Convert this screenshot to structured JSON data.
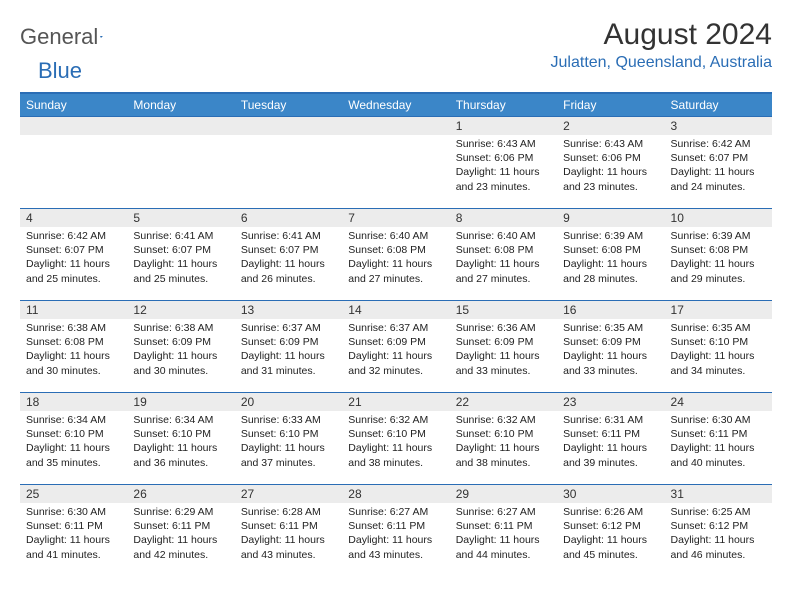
{
  "logo": {
    "text1": "General",
    "text2": "Blue"
  },
  "title": "August 2024",
  "subtitle": "Julatten, Queensland, Australia",
  "colors": {
    "header_bg": "#3b86c8",
    "header_text": "#ffffff",
    "border": "#2a6db5",
    "daynum_bg": "#ececec",
    "subtitle": "#2a6db5"
  },
  "day_headers": [
    "Sunday",
    "Monday",
    "Tuesday",
    "Wednesday",
    "Thursday",
    "Friday",
    "Saturday"
  ],
  "weeks": [
    [
      {
        "n": "",
        "sr": "",
        "ss": "",
        "dl": ""
      },
      {
        "n": "",
        "sr": "",
        "ss": "",
        "dl": ""
      },
      {
        "n": "",
        "sr": "",
        "ss": "",
        "dl": ""
      },
      {
        "n": "",
        "sr": "",
        "ss": "",
        "dl": ""
      },
      {
        "n": "1",
        "sr": "Sunrise: 6:43 AM",
        "ss": "Sunset: 6:06 PM",
        "dl": "Daylight: 11 hours and 23 minutes."
      },
      {
        "n": "2",
        "sr": "Sunrise: 6:43 AM",
        "ss": "Sunset: 6:06 PM",
        "dl": "Daylight: 11 hours and 23 minutes."
      },
      {
        "n": "3",
        "sr": "Sunrise: 6:42 AM",
        "ss": "Sunset: 6:07 PM",
        "dl": "Daylight: 11 hours and 24 minutes."
      }
    ],
    [
      {
        "n": "4",
        "sr": "Sunrise: 6:42 AM",
        "ss": "Sunset: 6:07 PM",
        "dl": "Daylight: 11 hours and 25 minutes."
      },
      {
        "n": "5",
        "sr": "Sunrise: 6:41 AM",
        "ss": "Sunset: 6:07 PM",
        "dl": "Daylight: 11 hours and 25 minutes."
      },
      {
        "n": "6",
        "sr": "Sunrise: 6:41 AM",
        "ss": "Sunset: 6:07 PM",
        "dl": "Daylight: 11 hours and 26 minutes."
      },
      {
        "n": "7",
        "sr": "Sunrise: 6:40 AM",
        "ss": "Sunset: 6:08 PM",
        "dl": "Daylight: 11 hours and 27 minutes."
      },
      {
        "n": "8",
        "sr": "Sunrise: 6:40 AM",
        "ss": "Sunset: 6:08 PM",
        "dl": "Daylight: 11 hours and 27 minutes."
      },
      {
        "n": "9",
        "sr": "Sunrise: 6:39 AM",
        "ss": "Sunset: 6:08 PM",
        "dl": "Daylight: 11 hours and 28 minutes."
      },
      {
        "n": "10",
        "sr": "Sunrise: 6:39 AM",
        "ss": "Sunset: 6:08 PM",
        "dl": "Daylight: 11 hours and 29 minutes."
      }
    ],
    [
      {
        "n": "11",
        "sr": "Sunrise: 6:38 AM",
        "ss": "Sunset: 6:08 PM",
        "dl": "Daylight: 11 hours and 30 minutes."
      },
      {
        "n": "12",
        "sr": "Sunrise: 6:38 AM",
        "ss": "Sunset: 6:09 PM",
        "dl": "Daylight: 11 hours and 30 minutes."
      },
      {
        "n": "13",
        "sr": "Sunrise: 6:37 AM",
        "ss": "Sunset: 6:09 PM",
        "dl": "Daylight: 11 hours and 31 minutes."
      },
      {
        "n": "14",
        "sr": "Sunrise: 6:37 AM",
        "ss": "Sunset: 6:09 PM",
        "dl": "Daylight: 11 hours and 32 minutes."
      },
      {
        "n": "15",
        "sr": "Sunrise: 6:36 AM",
        "ss": "Sunset: 6:09 PM",
        "dl": "Daylight: 11 hours and 33 minutes."
      },
      {
        "n": "16",
        "sr": "Sunrise: 6:35 AM",
        "ss": "Sunset: 6:09 PM",
        "dl": "Daylight: 11 hours and 33 minutes."
      },
      {
        "n": "17",
        "sr": "Sunrise: 6:35 AM",
        "ss": "Sunset: 6:10 PM",
        "dl": "Daylight: 11 hours and 34 minutes."
      }
    ],
    [
      {
        "n": "18",
        "sr": "Sunrise: 6:34 AM",
        "ss": "Sunset: 6:10 PM",
        "dl": "Daylight: 11 hours and 35 minutes."
      },
      {
        "n": "19",
        "sr": "Sunrise: 6:34 AM",
        "ss": "Sunset: 6:10 PM",
        "dl": "Daylight: 11 hours and 36 minutes."
      },
      {
        "n": "20",
        "sr": "Sunrise: 6:33 AM",
        "ss": "Sunset: 6:10 PM",
        "dl": "Daylight: 11 hours and 37 minutes."
      },
      {
        "n": "21",
        "sr": "Sunrise: 6:32 AM",
        "ss": "Sunset: 6:10 PM",
        "dl": "Daylight: 11 hours and 38 minutes."
      },
      {
        "n": "22",
        "sr": "Sunrise: 6:32 AM",
        "ss": "Sunset: 6:10 PM",
        "dl": "Daylight: 11 hours and 38 minutes."
      },
      {
        "n": "23",
        "sr": "Sunrise: 6:31 AM",
        "ss": "Sunset: 6:11 PM",
        "dl": "Daylight: 11 hours and 39 minutes."
      },
      {
        "n": "24",
        "sr": "Sunrise: 6:30 AM",
        "ss": "Sunset: 6:11 PM",
        "dl": "Daylight: 11 hours and 40 minutes."
      }
    ],
    [
      {
        "n": "25",
        "sr": "Sunrise: 6:30 AM",
        "ss": "Sunset: 6:11 PM",
        "dl": "Daylight: 11 hours and 41 minutes."
      },
      {
        "n": "26",
        "sr": "Sunrise: 6:29 AM",
        "ss": "Sunset: 6:11 PM",
        "dl": "Daylight: 11 hours and 42 minutes."
      },
      {
        "n": "27",
        "sr": "Sunrise: 6:28 AM",
        "ss": "Sunset: 6:11 PM",
        "dl": "Daylight: 11 hours and 43 minutes."
      },
      {
        "n": "28",
        "sr": "Sunrise: 6:27 AM",
        "ss": "Sunset: 6:11 PM",
        "dl": "Daylight: 11 hours and 43 minutes."
      },
      {
        "n": "29",
        "sr": "Sunrise: 6:27 AM",
        "ss": "Sunset: 6:11 PM",
        "dl": "Daylight: 11 hours and 44 minutes."
      },
      {
        "n": "30",
        "sr": "Sunrise: 6:26 AM",
        "ss": "Sunset: 6:12 PM",
        "dl": "Daylight: 11 hours and 45 minutes."
      },
      {
        "n": "31",
        "sr": "Sunrise: 6:25 AM",
        "ss": "Sunset: 6:12 PM",
        "dl": "Daylight: 11 hours and 46 minutes."
      }
    ]
  ]
}
